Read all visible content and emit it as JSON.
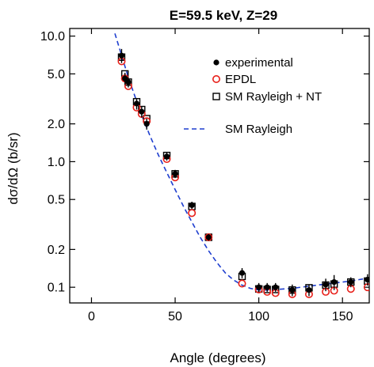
{
  "chart_data": {
    "type": "scatter",
    "title": "E=59.5 keV, Z=29",
    "xlabel": "Angle (degrees)",
    "ylabel": "dσ/dΩ (b/sr)",
    "xlim": [
      -13,
      166
    ],
    "ylim": [
      0.075,
      11.5
    ],
    "yscale": "log",
    "grid": false,
    "legend_position": "top-right",
    "xticks": [
      0,
      50,
      100,
      150
    ],
    "xtick_labels": [
      "0",
      "50",
      "100",
      "150"
    ],
    "yticks": [
      0.1,
      0.2,
      0.5,
      1.0,
      2.0,
      5.0,
      10.0
    ],
    "ytick_labels": [
      "0.1",
      "0.2",
      "0.5",
      "1.0",
      "2.0",
      "5.0",
      "10.0"
    ],
    "series": [
      {
        "name": "experimental",
        "marker": "filled-circle",
        "color": "#000000",
        "x": [
          18,
          20,
          22,
          27,
          30,
          33,
          45,
          50,
          60,
          70,
          90,
          100,
          105,
          110,
          120,
          130,
          140,
          145,
          155,
          165
        ],
        "y": [
          7.0,
          4.6,
          4.3,
          2.9,
          2.5,
          2.0,
          1.1,
          0.8,
          0.45,
          0.25,
          0.13,
          0.1,
          0.1,
          0.1,
          0.095,
          0.095,
          0.105,
          0.11,
          0.11,
          0.115
        ],
        "yerr": [
          0.9,
          0.5,
          0.4,
          0.3,
          0.25,
          0.2,
          0.08,
          0.06,
          0.03,
          0.015,
          0.012,
          0.008,
          0.008,
          0.008,
          0.01,
          0.01,
          0.012,
          0.015,
          0.01,
          0.012
        ]
      },
      {
        "name": "EPDL",
        "marker": "open-circle",
        "color": "#e8201a",
        "x": [
          18,
          20,
          22,
          27,
          30,
          33,
          45,
          50,
          60,
          70,
          90,
          100,
          105,
          110,
          120,
          130,
          140,
          145,
          155,
          165
        ],
        "y": [
          6.3,
          4.6,
          4.0,
          2.7,
          2.4,
          2.1,
          1.05,
          0.75,
          0.39,
          0.25,
          0.107,
          0.096,
          0.092,
          0.09,
          0.088,
          0.088,
          0.092,
          0.094,
          0.097,
          0.1
        ]
      },
      {
        "name": "SM Rayleigh + NT",
        "marker": "open-square",
        "color": "#000000",
        "x": [
          18,
          20,
          22,
          27,
          30,
          33,
          45,
          50,
          60,
          70,
          90,
          100,
          105,
          110,
          120,
          130,
          140,
          145,
          155,
          165
        ],
        "y": [
          6.8,
          5.0,
          4.3,
          3.0,
          2.6,
          2.2,
          1.12,
          0.8,
          0.44,
          0.25,
          0.122,
          0.097,
          0.096,
          0.096,
          0.095,
          0.099,
          0.104,
          0.106,
          0.11,
          0.112
        ]
      },
      {
        "name": "SM Rayleigh",
        "marker": "dashed-line",
        "color": "#1f3fcf",
        "x": [
          14,
          18,
          22,
          26,
          30,
          35,
          40,
          45,
          50,
          55,
          60,
          65,
          70,
          75,
          80,
          85,
          90,
          95,
          100,
          105,
          110,
          115,
          120,
          125,
          130,
          135,
          140,
          145,
          150,
          155,
          160,
          165
        ],
        "y": [
          10.5,
          7.0,
          4.7,
          3.3,
          2.35,
          1.6,
          1.13,
          0.82,
          0.6,
          0.44,
          0.33,
          0.25,
          0.195,
          0.157,
          0.13,
          0.114,
          0.104,
          0.098,
          0.095,
          0.095,
          0.096,
          0.097,
          0.098,
          0.1,
          0.102,
          0.104,
          0.106,
          0.108,
          0.11,
          0.112,
          0.115,
          0.118
        ]
      }
    ]
  }
}
